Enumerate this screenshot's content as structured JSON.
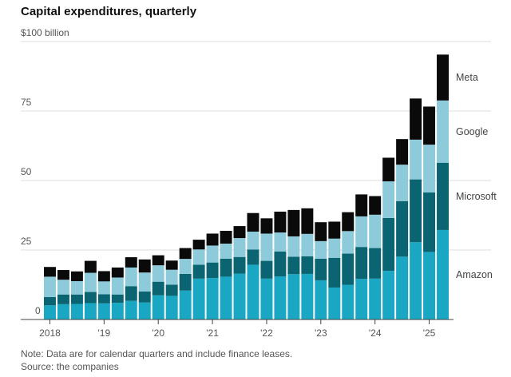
{
  "chart_data": {
    "type": "bar",
    "stacked": true,
    "title": "Capital expenditures, quarterly",
    "unit_label": "$100 billion",
    "y_ticks": [
      {
        "value": 0,
        "label": "0"
      },
      {
        "value": 25,
        "label": "25"
      },
      {
        "value": 50,
        "label": "50"
      },
      {
        "value": 75,
        "label": "75"
      },
      {
        "value": 100,
        "label": "$100 billion"
      }
    ],
    "ylim": [
      0,
      100
    ],
    "grid": true,
    "x_ticks": [
      {
        "index": 0,
        "label": "2018"
      },
      {
        "index": 4,
        "label": "'19"
      },
      {
        "index": 8,
        "label": "'20"
      },
      {
        "index": 12,
        "label": "'21"
      },
      {
        "index": 16,
        "label": "'22"
      },
      {
        "index": 20,
        "label": "'23"
      },
      {
        "index": 24,
        "label": "'24"
      },
      {
        "index": 28,
        "label": "'25"
      }
    ],
    "categories": [
      "Q1 2018",
      "Q2 2018",
      "Q3 2018",
      "Q4 2018",
      "Q1 2019",
      "Q2 2019",
      "Q3 2019",
      "Q4 2019",
      "Q1 2020",
      "Q2 2020",
      "Q3 2020",
      "Q4 2020",
      "Q1 2021",
      "Q2 2021",
      "Q3 2021",
      "Q4 2021",
      "Q1 2022",
      "Q2 2022",
      "Q3 2022",
      "Q4 2022",
      "Q1 2023",
      "Q2 2023",
      "Q3 2023",
      "Q4 2023",
      "Q1 2024",
      "Q2 2024",
      "Q3 2024",
      "Q4 2024",
      "Q1 2025",
      "Q2 2025"
    ],
    "series": [
      {
        "name": "Amazon",
        "color": "#1aa7c4",
        "values": [
          5.1,
          5.5,
          5.6,
          5.9,
          5.8,
          6.0,
          6.7,
          6.1,
          8.7,
          8.5,
          10.4,
          14.7,
          14.9,
          15.4,
          16.5,
          19.7,
          14.7,
          15.5,
          16.3,
          16.4,
          14.1,
          11.5,
          12.5,
          14.6,
          14.7,
          17.5,
          22.6,
          27.8,
          24.3,
          32.2
        ]
      },
      {
        "name": "Microsoft",
        "color": "#0b6471",
        "values": [
          3.0,
          3.5,
          3.4,
          4.0,
          3.3,
          3.0,
          5.3,
          4.0,
          4.9,
          4.0,
          6.0,
          5.0,
          5.6,
          6.5,
          6.0,
          5.5,
          6.4,
          9.0,
          6.3,
          6.3,
          7.8,
          10.7,
          11.2,
          11.5,
          11.0,
          19.0,
          20.0,
          22.6,
          21.4,
          24.2
        ]
      },
      {
        "name": "Google",
        "color": "#8dcbdb",
        "values": [
          7.3,
          5.3,
          4.8,
          6.9,
          4.6,
          6.1,
          6.7,
          6.8,
          5.9,
          5.4,
          5.4,
          5.5,
          6.1,
          5.4,
          6.8,
          6.4,
          9.8,
          6.8,
          7.3,
          8.1,
          6.3,
          6.9,
          8.1,
          11.0,
          12.0,
          13.2,
          13.1,
          14.3,
          17.2,
          22.4
        ]
      },
      {
        "name": "Meta",
        "color": "#0a0a0a",
        "values": [
          3.5,
          3.5,
          3.5,
          4.3,
          3.7,
          3.6,
          3.7,
          4.7,
          3.6,
          3.3,
          3.9,
          3.5,
          4.3,
          4.6,
          4.3,
          6.7,
          5.5,
          7.5,
          9.5,
          9.2,
          6.8,
          6.1,
          6.8,
          7.9,
          6.7,
          8.5,
          9.2,
          14.8,
          13.7,
          16.5
        ]
      }
    ],
    "legend": "right, beside the last bar"
  },
  "footer": {
    "note": "Note: Data are for calendar quarters and include finance leases.",
    "source": "Source: the companies"
  }
}
